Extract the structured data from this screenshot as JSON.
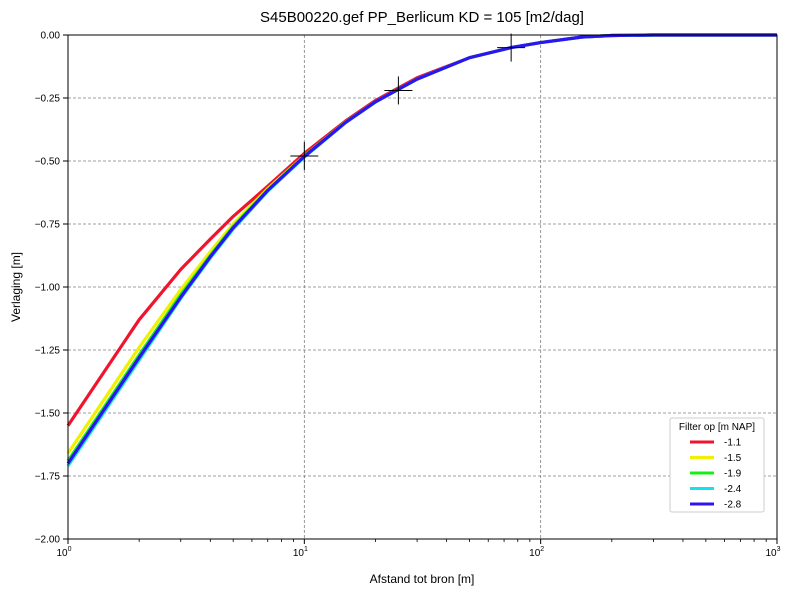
{
  "chart_data": {
    "type": "line",
    "title": "S45B00220.gef PP_Berlicum   KD = 105 [m2/dag]",
    "xlabel": "Afstand tot bron [m]",
    "ylabel": "Verlaging [m]",
    "xscale": "log",
    "xlim": [
      1,
      1000
    ],
    "ylim": [
      -2.0,
      0.0
    ],
    "x_ticks": [
      {
        "value": 1,
        "base": "10",
        "exp": "0"
      },
      {
        "value": 10,
        "base": "10",
        "exp": "1"
      },
      {
        "value": 100,
        "base": "10",
        "exp": "2"
      },
      {
        "value": 1000,
        "base": "10",
        "exp": "3"
      }
    ],
    "y_ticks": [
      {
        "value": 0.0,
        "label": "0.00"
      },
      {
        "value": -0.25,
        "label": "−0.25"
      },
      {
        "value": -0.5,
        "label": "−0.50"
      },
      {
        "value": -0.75,
        "label": "−0.75"
      },
      {
        "value": -1.0,
        "label": "−1.00"
      },
      {
        "value": -1.25,
        "label": "−1.25"
      },
      {
        "value": -1.5,
        "label": "−1.50"
      },
      {
        "value": -1.75,
        "label": "−1.75"
      },
      {
        "value": -2.0,
        "label": "−2.00"
      }
    ],
    "grid": true,
    "legend": {
      "title": "Filter op [m NAP]",
      "position": "lower-right"
    },
    "series": [
      {
        "name": "-1.1",
        "color": "#f0142d",
        "x": [
          1,
          2,
          3,
          4,
          5,
          7,
          10,
          15,
          20,
          30,
          50,
          75,
          100,
          150,
          200,
          300,
          1000
        ],
        "y": [
          -1.55,
          -1.13,
          -0.93,
          -0.81,
          -0.72,
          -0.6,
          -0.47,
          -0.34,
          -0.26,
          -0.17,
          -0.09,
          -0.05,
          -0.03,
          -0.008,
          -0.002,
          0.0,
          0.0
        ]
      },
      {
        "name": "-1.5",
        "color": "#f0f000",
        "x": [
          1,
          2,
          3,
          4,
          5,
          7,
          10,
          15,
          20,
          30,
          50,
          75,
          100,
          150,
          200,
          300,
          1000
        ],
        "y": [
          -1.66,
          -1.24,
          -1.01,
          -0.86,
          -0.75,
          -0.61,
          -0.48,
          -0.345,
          -0.265,
          -0.175,
          -0.09,
          -0.05,
          -0.03,
          -0.008,
          -0.002,
          0.0,
          0.0
        ]
      },
      {
        "name": "-1.9",
        "color": "#14f014",
        "x": [
          1,
          2,
          3,
          4,
          5,
          7,
          10,
          15,
          20,
          30,
          50,
          75,
          100,
          150,
          200,
          300,
          1000
        ],
        "y": [
          -1.69,
          -1.27,
          -1.03,
          -0.875,
          -0.76,
          -0.615,
          -0.48,
          -0.345,
          -0.265,
          -0.175,
          -0.09,
          -0.05,
          -0.03,
          -0.008,
          -0.002,
          0.0,
          0.0
        ]
      },
      {
        "name": "-2.4",
        "color": "#14e1f0",
        "x": [
          1,
          2,
          3,
          4,
          5,
          7,
          10,
          15,
          20,
          30,
          50,
          75,
          100,
          150,
          200,
          300,
          1000
        ],
        "y": [
          -1.71,
          -1.29,
          -1.045,
          -0.885,
          -0.77,
          -0.62,
          -0.485,
          -0.347,
          -0.266,
          -0.175,
          -0.09,
          -0.05,
          -0.03,
          -0.008,
          -0.002,
          0.0,
          0.0
        ]
      },
      {
        "name": "-2.8",
        "color": "#2d14f0",
        "x": [
          1,
          2,
          3,
          4,
          5,
          7,
          10,
          15,
          20,
          30,
          50,
          75,
          100,
          150,
          200,
          300,
          1000
        ],
        "y": [
          -1.7,
          -1.28,
          -1.04,
          -0.88,
          -0.765,
          -0.617,
          -0.482,
          -0.346,
          -0.265,
          -0.175,
          -0.09,
          -0.05,
          -0.03,
          -0.008,
          -0.002,
          0.0,
          0.0
        ]
      }
    ],
    "markers": [
      {
        "x": 10,
        "y": -0.48
      },
      {
        "x": 25,
        "y": -0.22
      },
      {
        "x": 75,
        "y": -0.05
      }
    ]
  }
}
